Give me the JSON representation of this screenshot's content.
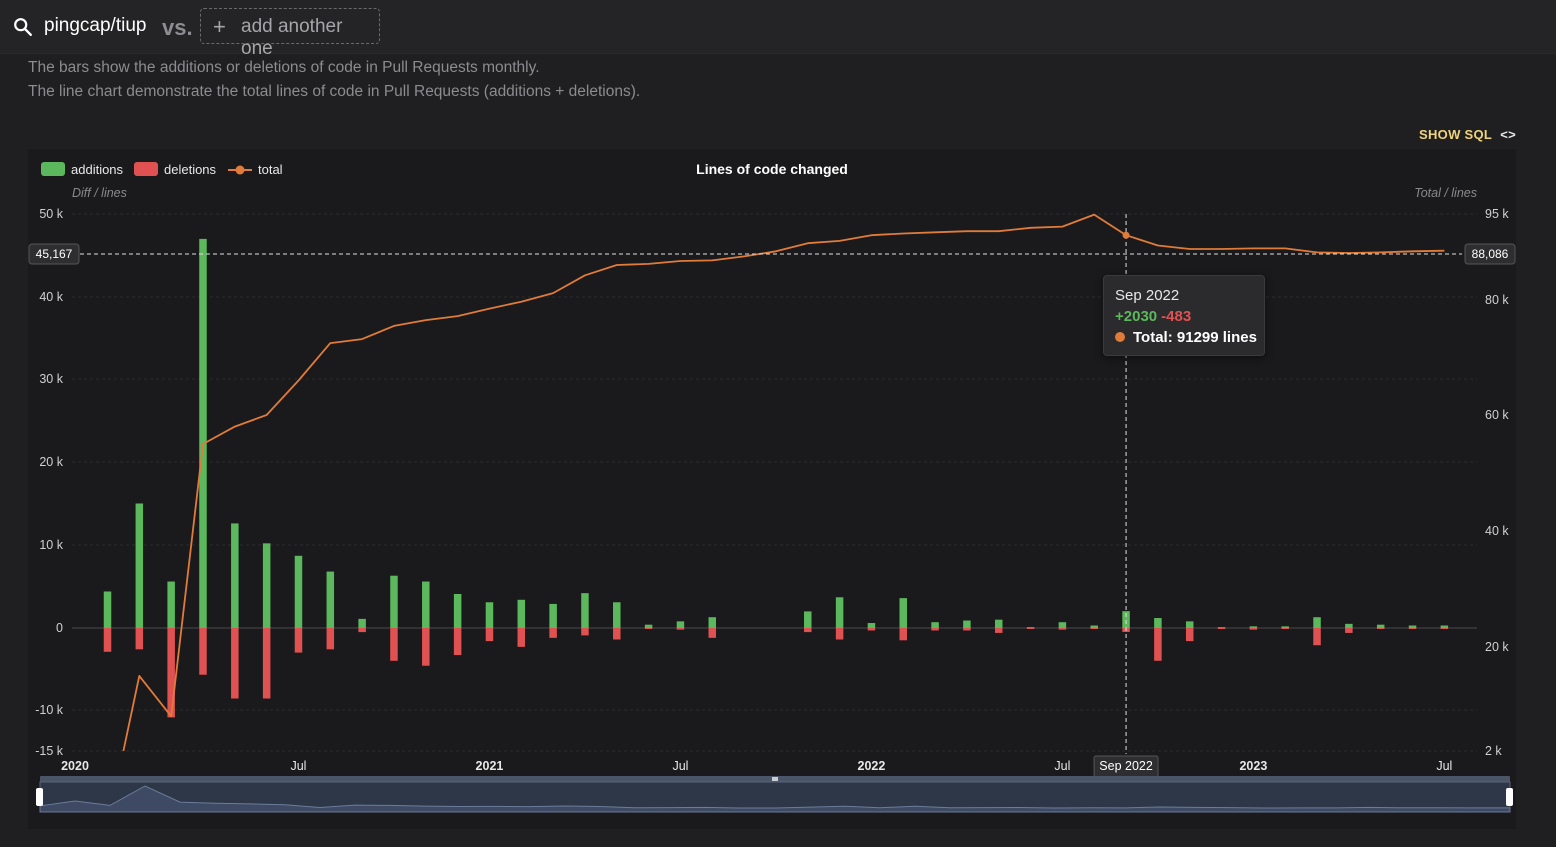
{
  "header": {
    "repo": "pingcap/tiup",
    "vs_label": "vs.",
    "add_label": "add another one"
  },
  "description": {
    "line1": "The bars show the additions or deletions of code in Pull Requests monthly.",
    "line2": "The line chart demonstrate the total lines of code in Pull Requests (additions + deletions)."
  },
  "show_sql_label": "SHOW SQL",
  "show_sql_icon": "<>",
  "colors": {
    "additions": "#5cb85c",
    "deletions": "#e05252",
    "total": "#e07b39",
    "tooltip_add": "#5cb85c",
    "tooltip_del": "#e05252"
  },
  "tooltip": {
    "title": "Sep 2022",
    "additions": "+2030",
    "deletions": "-483",
    "total": "Total: 91299 lines"
  },
  "chart_data": {
    "type": "bar",
    "title": "Lines of code changed",
    "legend": [
      "additions",
      "deletions",
      "total"
    ],
    "legend_position": "top-left",
    "ylabel_left": "Diff / lines",
    "ylabel_right": "Total / lines",
    "y_left_ticks": [
      "50 k",
      "40 k",
      "30 k",
      "20 k",
      "10 k",
      "0",
      "-10 k",
      "-15 k"
    ],
    "y_left_tick_values": [
      50000,
      40000,
      30000,
      20000,
      10000,
      0,
      -10000,
      -15000
    ],
    "y_right_ticks": [
      "95 k",
      "80 k",
      "60 k",
      "40 k",
      "20 k",
      "2 k"
    ],
    "y_right_tick_values": [
      95000,
      80000,
      60000,
      40000,
      20000,
      2000
    ],
    "ylim_left": [
      -15000,
      50000
    ],
    "x_tick_labels": [
      {
        "label": "2020",
        "index": 0,
        "bold": true
      },
      {
        "label": "Jul",
        "index": 6,
        "bold": false
      },
      {
        "label": "2021",
        "index": 12,
        "bold": true
      },
      {
        "label": "Jul",
        "index": 18,
        "bold": false
      },
      {
        "label": "2022",
        "index": 24,
        "bold": true
      },
      {
        "label": "Jul",
        "index": 30,
        "bold": false
      },
      {
        "label": "2023",
        "index": 36,
        "bold": true
      },
      {
        "label": "Jul",
        "index": 42,
        "bold": false
      }
    ],
    "categories": [
      "Jan 2020",
      "Feb 2020",
      "Mar 2020",
      "Apr 2020",
      "May 2020",
      "Jun 2020",
      "Jul 2020",
      "Aug 2020",
      "Sep 2020",
      "Oct 2020",
      "Nov 2020",
      "Dec 2020",
      "Jan 2021",
      "Feb 2021",
      "Mar 2021",
      "Apr 2021",
      "May 2021",
      "Jun 2021",
      "Jul 2021",
      "Aug 2021",
      "Sep 2021",
      "Oct 2021",
      "Nov 2021",
      "Dec 2021",
      "Jan 2022",
      "Feb 2022",
      "Mar 2022",
      "Apr 2022",
      "May 2022",
      "Jun 2022",
      "Jul 2022",
      "Aug 2022",
      "Sep 2022",
      "Oct 2022",
      "Nov 2022",
      "Dec 2022",
      "Jan 2023",
      "Feb 2023",
      "Mar 2023",
      "Apr 2023",
      "May 2023",
      "Jun 2023",
      "Jul 2023"
    ],
    "series": [
      {
        "name": "additions",
        "values": [
          4400,
          15000,
          5600,
          47000,
          12600,
          10200,
          8700,
          6800,
          1100,
          6300,
          5600,
          4100,
          3100,
          3400,
          2900,
          4200,
          3100,
          400,
          800,
          1300,
          0,
          0,
          2000,
          3700,
          600,
          3600,
          700,
          900,
          1000,
          100,
          700,
          300,
          2030,
          1200,
          800,
          100,
          200,
          200,
          1300,
          500,
          400,
          300,
          300
        ]
      },
      {
        "name": "deletions",
        "values": [
          -2900,
          -2600,
          -10900,
          -5700,
          -8600,
          -8600,
          -3000,
          -2600,
          -500,
          -4000,
          -4600,
          -3300,
          -1600,
          -2300,
          -1200,
          -900,
          -1400,
          -100,
          -200,
          -1200,
          0,
          0,
          -500,
          -1400,
          -300,
          -1500,
          -300,
          -300,
          -600,
          -100,
          -200,
          -100,
          -483,
          -4000,
          -1600,
          -100,
          -200,
          -100,
          -2100,
          -600,
          -100,
          -100,
          -100
        ]
      },
      {
        "name": "total",
        "values": [
          -11000,
          15000,
          8000,
          55000,
          58000,
          60000,
          66000,
          72500,
          73200,
          75500,
          76500,
          77200,
          78500,
          79700,
          81200,
          84300,
          86100,
          86300,
          86800,
          86900,
          87600,
          88500,
          89900,
          90300,
          91300,
          91600,
          91800,
          92000,
          92000,
          92600,
          92800,
          94900,
          91299,
          89500,
          88900,
          88900,
          89000,
          89000,
          88300,
          88200,
          88300,
          88500,
          88600
        ]
      }
    ],
    "highlight": {
      "category": "Sep 2022",
      "label": "Sep 2022",
      "left_value_label": "45,167",
      "right_value_label": "88,086"
    }
  }
}
